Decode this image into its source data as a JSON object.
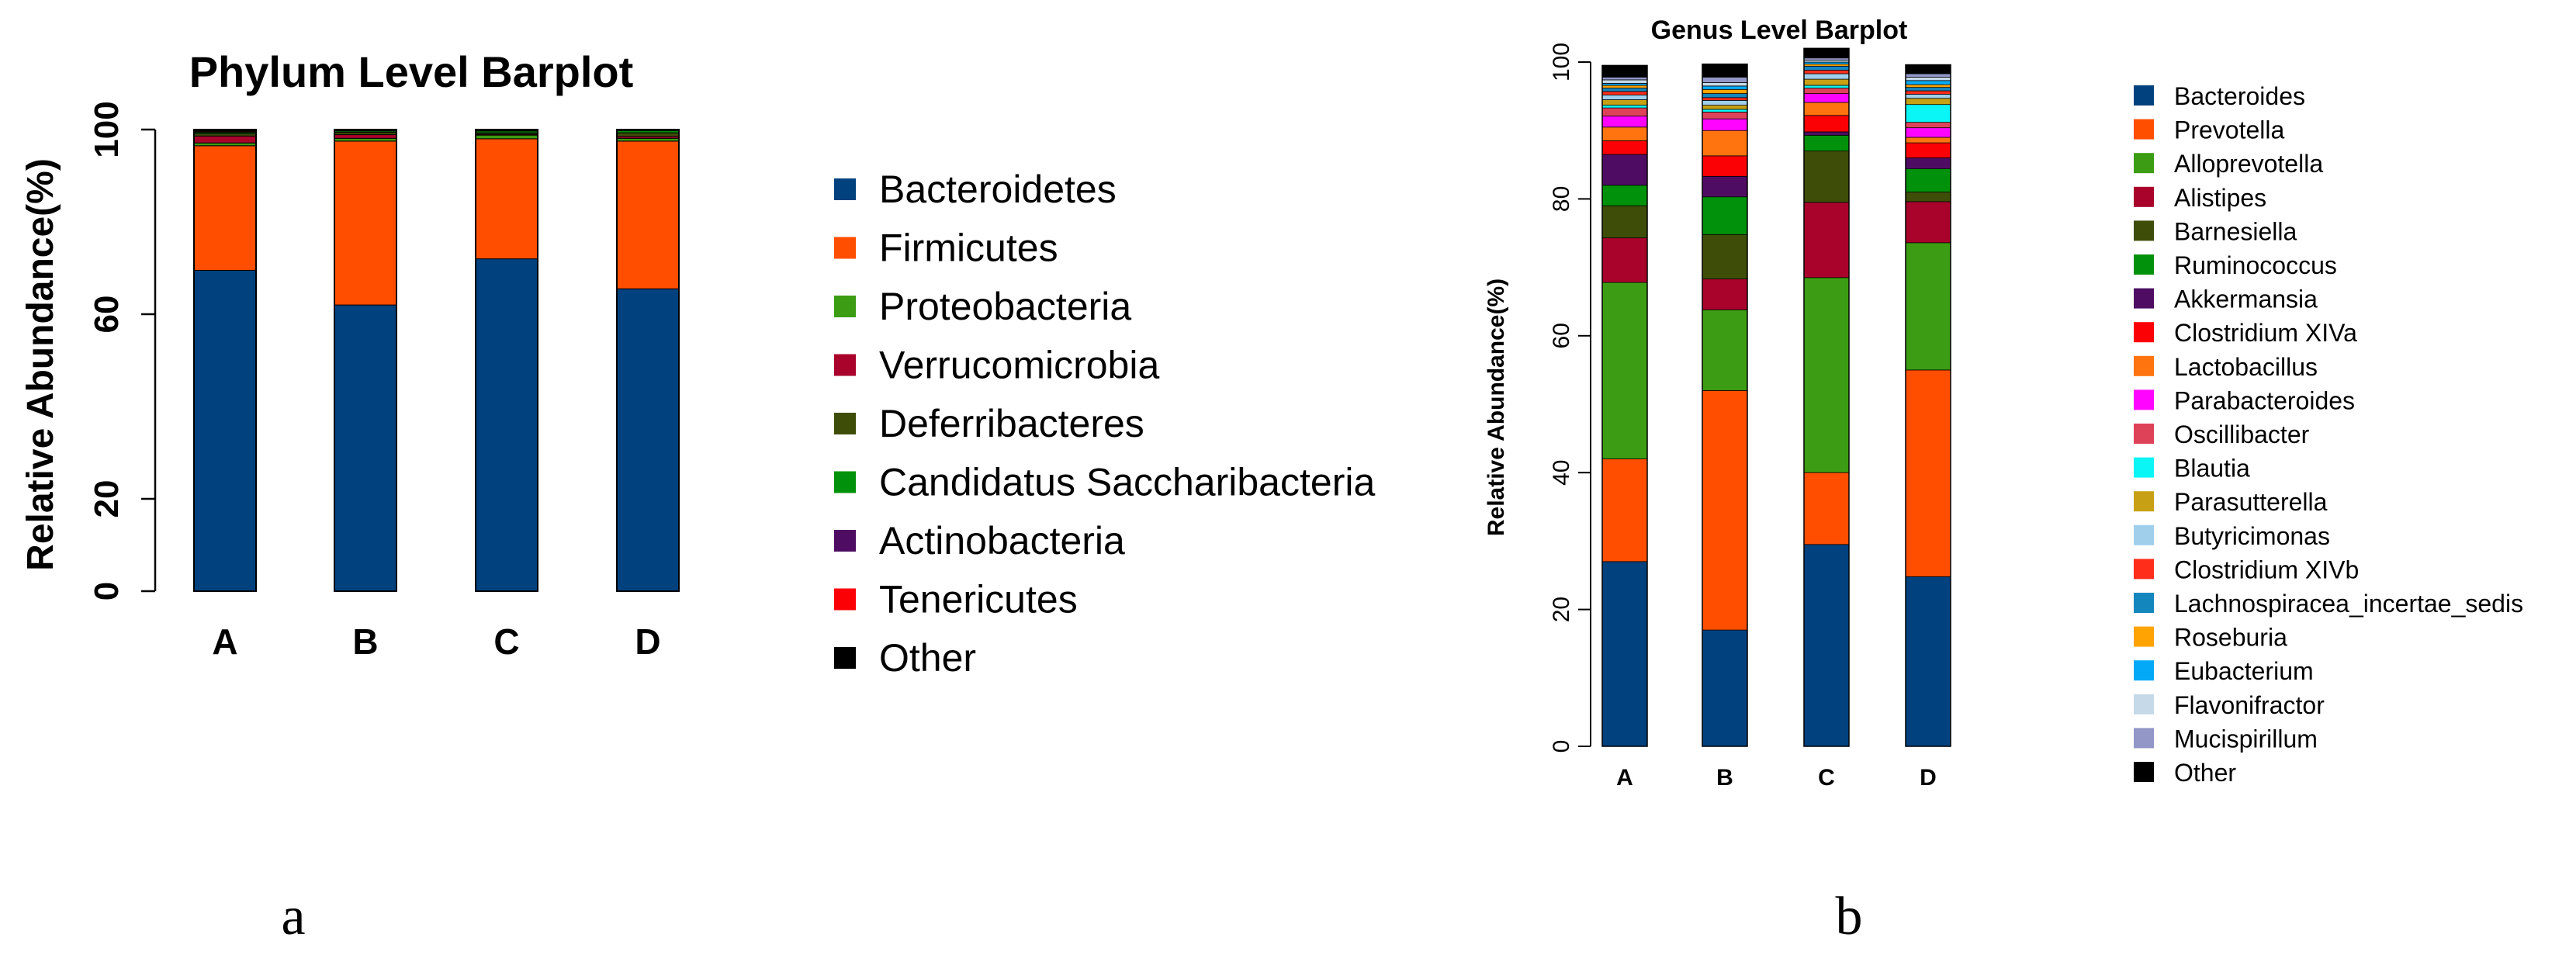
{
  "chart_data": [
    {
      "type": "bar",
      "stacked": true,
      "panel_label": "a",
      "title": "Phylum Level Barplot",
      "xlabel": "",
      "ylabel": "Relative Abundance(%)",
      "ylim": [
        0,
        100
      ],
      "yticks": [
        0,
        20,
        60,
        100
      ],
      "categories": [
        "A",
        "B",
        "C",
        "D"
      ],
      "series": [
        {
          "name": "Bacteroidetes",
          "color": "#00417E",
          "values": [
            69.5,
            62,
            72,
            65.5
          ]
        },
        {
          "name": "Firmicutes",
          "color": "#FF4E00",
          "values": [
            27,
            35.5,
            26,
            32
          ]
        },
        {
          "name": "Proteobacteria",
          "color": "#3C9C13",
          "values": [
            0.6,
            0.6,
            0.8,
            0.6
          ]
        },
        {
          "name": "Verrucomicrobia",
          "color": "#A9032C",
          "values": [
            1.5,
            0.8,
            0.2,
            0.4
          ]
        },
        {
          "name": "Deferribacteres",
          "color": "#3E4D08",
          "values": [
            0.5,
            0.5,
            0.3,
            0.8
          ]
        },
        {
          "name": "Candidatus Saccharibacteria",
          "color": "#02910A",
          "values": [
            0.3,
            0.3,
            0.4,
            0.5
          ]
        },
        {
          "name": "Actinobacteria",
          "color": "#4E0D62",
          "values": [
            0.1,
            0.1,
            0.1,
            0.1
          ]
        },
        {
          "name": "Tenericutes",
          "color": "#FB0106",
          "values": [
            0.2,
            0.1,
            0.1,
            0.1
          ]
        },
        {
          "name": "Other",
          "color": "#000000",
          "values": [
            0.3,
            0.1,
            0.1,
            0.0
          ]
        }
      ]
    },
    {
      "type": "bar",
      "stacked": true,
      "panel_label": "b",
      "title": "Genus Level Barplot",
      "xlabel": "",
      "ylabel": "Relative Abundance(%)",
      "ylim": [
        0,
        100
      ],
      "yticks": [
        0,
        20,
        40,
        60,
        80,
        100
      ],
      "categories": [
        "A",
        "B",
        "C",
        "D"
      ],
      "series": [
        {
          "name": "Bacteroides",
          "color": "#00417E",
          "values": [
            27,
            17,
            29.5,
            24.8
          ]
        },
        {
          "name": "Prevotella",
          "color": "#FF4E00",
          "values": [
            15,
            35,
            10.5,
            30.2
          ]
        },
        {
          "name": "Alloprevotella",
          "color": "#3C9C13",
          "values": [
            25.8,
            11.8,
            28.5,
            18.6
          ]
        },
        {
          "name": "Alistipes",
          "color": "#A9032C",
          "values": [
            6.5,
            4.5,
            11,
            6
          ]
        },
        {
          "name": "Barnesiella",
          "color": "#3E4D08",
          "values": [
            4.7,
            6.5,
            7.5,
            1.4
          ]
        },
        {
          "name": "Ruminococcus",
          "color": "#02910A",
          "values": [
            3,
            5.5,
            2.3,
            3.4
          ]
        },
        {
          "name": "Akkermansia",
          "color": "#4E0D62",
          "values": [
            4.5,
            3,
            0.5,
            1.6
          ]
        },
        {
          "name": "Clostridium XIVa",
          "color": "#FB0106",
          "values": [
            2,
            3,
            2.4,
            2.2
          ]
        },
        {
          "name": "Lactobacillus",
          "color": "#FF740E",
          "values": [
            2,
            3.7,
            1.9,
            0.8
          ]
        },
        {
          "name": "Parabacteroides",
          "color": "#FF05FF",
          "values": [
            1.6,
            1.7,
            1.3,
            1.4
          ]
        },
        {
          "name": "Oscillibacter",
          "color": "#DE4258",
          "values": [
            1.2,
            1,
            0.8,
            0.8
          ]
        },
        {
          "name": "Blautia",
          "color": "#0AF5F5",
          "values": [
            0.4,
            0.4,
            0.4,
            2.6
          ]
        },
        {
          "name": "Parasutterella",
          "color": "#C7A113",
          "values": [
            0.8,
            0.6,
            0.9,
            0.9
          ]
        },
        {
          "name": "Butyricimonas",
          "color": "#A0CFEC",
          "values": [
            0.7,
            0.7,
            0.8,
            0.6
          ]
        },
        {
          "name": "Clostridium XIVb",
          "color": "#FF2D1A",
          "values": [
            0.5,
            0.4,
            0.5,
            0.5
          ]
        },
        {
          "name": "Lachnospiracea_incertae_sedis",
          "color": "#1486BE",
          "values": [
            0.5,
            0.6,
            0.6,
            0.5
          ]
        },
        {
          "name": "Roseburia",
          "color": "#FFA303",
          "values": [
            0.4,
            0.6,
            0.3,
            0.4
          ]
        },
        {
          "name": "Eubacterium",
          "color": "#03A9F6",
          "values": [
            0.3,
            0.5,
            0.3,
            0.6
          ]
        },
        {
          "name": "Flavonifractor",
          "color": "#C6D9E8",
          "values": [
            0.5,
            0.5,
            0.3,
            0.5
          ]
        },
        {
          "name": "Mucispirillum",
          "color": "#9297C8",
          "values": [
            0.4,
            0.8,
            0.3,
            0.5
          ]
        },
        {
          "name": "Other",
          "color": "#000000",
          "values": [
            1.7,
            1.9,
            1.4,
            1.3
          ]
        }
      ]
    }
  ]
}
